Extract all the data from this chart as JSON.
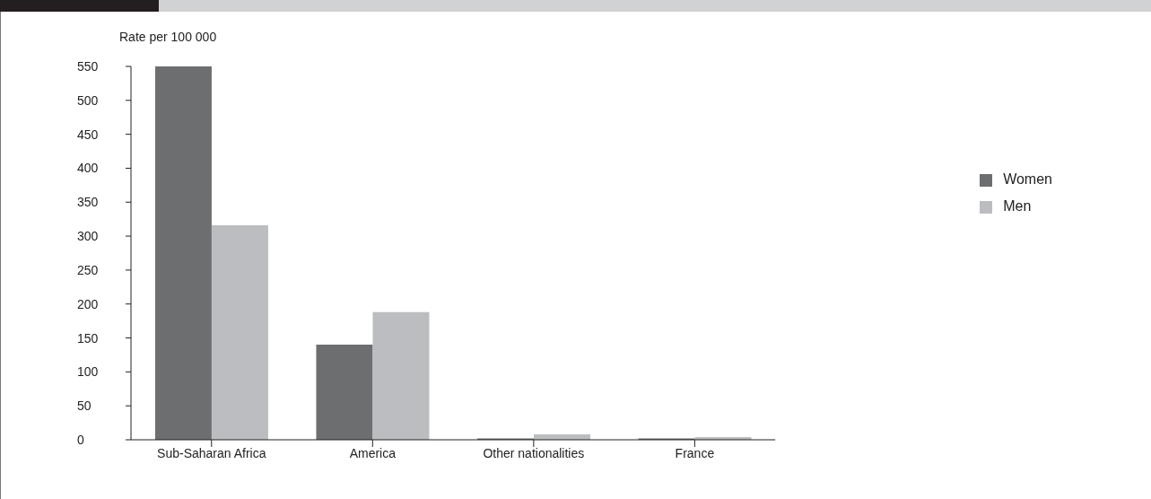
{
  "chart_data": {
    "type": "bar",
    "ylabel": "Rate per 100 000",
    "categories": [
      "Sub-Saharan Africa",
      "America",
      "Other nationalities",
      "France"
    ],
    "series": [
      {
        "name": "Women",
        "color": "#6d6e70",
        "values": [
          550,
          140,
          2,
          2
        ]
      },
      {
        "name": "Men",
        "color": "#bcbdc0",
        "values": [
          316,
          188,
          8,
          4
        ]
      }
    ],
    "ylim": [
      0,
      550
    ],
    "yticks": [
      0,
      50,
      100,
      150,
      200,
      250,
      300,
      350,
      400,
      450,
      500,
      550
    ],
    "grid": false,
    "legend": "top right"
  }
}
